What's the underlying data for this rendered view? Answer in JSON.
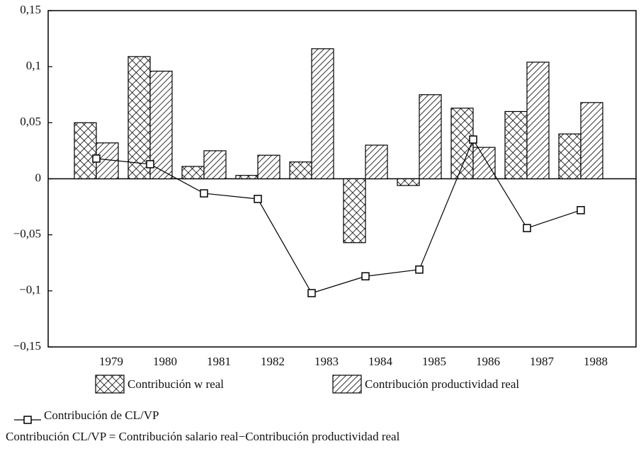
{
  "chart_data": {
    "type": "bar",
    "categories": [
      "1979",
      "1980",
      "1981",
      "1982",
      "1983",
      "1984",
      "1985",
      "1986",
      "1987",
      "1988"
    ],
    "series": [
      {
        "name": "Contribución w real",
        "type": "bar",
        "pattern": "crosshatch",
        "color": "#000000",
        "values": [
          0.05,
          0.109,
          0.011,
          0.003,
          0.015,
          -0.057,
          -0.006,
          0.063,
          0.06,
          0.04
        ]
      },
      {
        "name": "Contribución productividad real",
        "type": "bar",
        "pattern": "diagonal",
        "color": "#000000",
        "values": [
          0.032,
          0.096,
          0.025,
          0.021,
          0.116,
          0.03,
          0.075,
          0.028,
          0.104,
          0.068
        ]
      },
      {
        "name": "Contribución de CL/VP",
        "type": "line",
        "color": "#000000",
        "values": [
          0.018,
          0.013,
          -0.013,
          -0.018,
          -0.102,
          -0.087,
          -0.081,
          0.035,
          -0.044,
          -0.028
        ]
      }
    ],
    "ylim": [
      -0.15,
      0.15
    ],
    "yticks": [
      {
        "value": -0.15,
        "label": "−0,15"
      },
      {
        "value": -0.1,
        "label": "−0,1"
      },
      {
        "value": -0.05,
        "label": "−0,05"
      },
      0,
      {
        "value": 0.05,
        "label": "0,05"
      },
      {
        "value": 0.1,
        "label": "0,1"
      },
      {
        "value": 0.15,
        "label": "0,15"
      }
    ],
    "footnote": "Contribución CL/VP = Contribución salario real−Contribución productividad real"
  }
}
